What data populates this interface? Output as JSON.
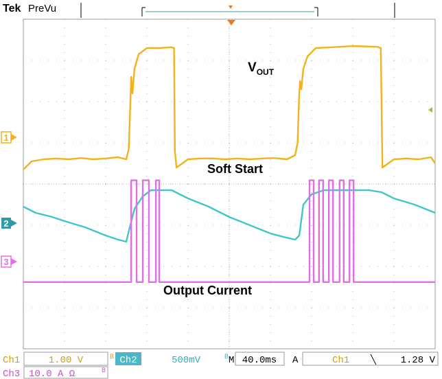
{
  "header": {
    "brand": "Tek",
    "mode": "PreVu"
  },
  "colors": {
    "ch1": "#f2b21c",
    "ch2": "#3fc7c7",
    "ch3": "#e26ee6",
    "grid": "#9a9a9a",
    "trigger": "#f07a1e",
    "status_box": "#4db6c8"
  },
  "annotations": {
    "vout_main": "V",
    "vout_sub": "OUT",
    "soft_start": "Soft Start",
    "output_current": "Output Current"
  },
  "channel_markers": {
    "ch1": "1",
    "ch2": "2",
    "ch3": "3"
  },
  "status": {
    "row1": {
      "ch1_label": "Ch1",
      "ch1_scale": "1.00 V",
      "ch1_bw": "B",
      "ch2_label": "Ch2",
      "ch2_scale": "500mV",
      "ch2_bw": "B",
      "time_prefix": "M",
      "timebase": "40.0ms",
      "acq_mode": "A",
      "trig_src": "Ch1",
      "trig_slope": "╲",
      "trig_level": "1.28 V"
    },
    "row2": {
      "ch3_label": "Ch3",
      "ch3_scale": "10.0 A Ω",
      "ch3_bw": "B"
    }
  },
  "chart_data": {
    "type": "line",
    "grid": true,
    "xlim": [
      0,
      10
    ],
    "ylim": [
      0,
      8
    ],
    "x_divisions": 10,
    "y_divisions": 8,
    "series": [
      {
        "color": "#f2b21c",
        "x": [
          0,
          0.2,
          0.5,
          0.8,
          1.1,
          1.4,
          1.7,
          2.0,
          2.3,
          2.5,
          2.56,
          2.6,
          2.62,
          2.65,
          2.7,
          2.8,
          3.0,
          3.3,
          3.6,
          3.66,
          3.68,
          3.72,
          4.0,
          4.3,
          4.6,
          4.9,
          5.2,
          5.5,
          5.8,
          6.1,
          6.4,
          6.6,
          6.66,
          6.7,
          6.72,
          6.75,
          6.8,
          6.9,
          7.1,
          7.5,
          8.0,
          8.6,
          8.68,
          8.72,
          9.0,
          9.3,
          9.6,
          9.9,
          10
        ],
        "y": [
          4.35,
          4.55,
          4.6,
          4.62,
          4.6,
          4.63,
          4.6,
          4.62,
          4.65,
          4.6,
          4.85,
          6.0,
          6.6,
          6.2,
          6.8,
          7.15,
          7.3,
          7.3,
          7.32,
          7.3,
          4.8,
          4.4,
          4.6,
          4.62,
          4.62,
          4.6,
          4.62,
          4.6,
          4.62,
          4.63,
          4.6,
          4.7,
          5.0,
          6.2,
          6.5,
          6.3,
          6.8,
          7.1,
          7.3,
          7.32,
          7.35,
          7.33,
          7.3,
          4.4,
          4.6,
          4.62,
          4.6,
          4.65,
          4.5
        ]
      },
      {
        "color": "#3fc7c7",
        "x": [
          0,
          0.3,
          0.7,
          1.0,
          1.5,
          2.0,
          2.3,
          2.5,
          2.56,
          2.7,
          2.9,
          3.1,
          3.4,
          3.6,
          3.7,
          4.0,
          4.5,
          5.0,
          5.5,
          6.0,
          6.3,
          6.6,
          6.7,
          6.8,
          7.0,
          7.3,
          7.8,
          8.4,
          8.7,
          9.0,
          9.5,
          10
        ],
        "y": [
          3.45,
          3.3,
          3.2,
          3.1,
          2.95,
          2.75,
          2.65,
          2.6,
          2.85,
          3.4,
          3.7,
          3.85,
          3.85,
          3.85,
          3.8,
          3.65,
          3.45,
          3.2,
          3.0,
          2.8,
          2.72,
          2.65,
          2.75,
          3.5,
          3.75,
          3.85,
          3.85,
          3.85,
          3.8,
          3.65,
          3.5,
          3.3
        ]
      },
      {
        "color": "#e26ee6",
        "baseline": 1.62,
        "pulses": [
          [
            2.62,
            2.75
          ],
          [
            2.9,
            3.05
          ],
          [
            3.22,
            3.3
          ],
          [
            6.95,
            7.05
          ],
          [
            7.18,
            7.28
          ],
          [
            7.42,
            7.52
          ],
          [
            7.68,
            7.78
          ],
          [
            7.92,
            8.02
          ]
        ],
        "pulse_height": 2.47
      }
    ]
  }
}
